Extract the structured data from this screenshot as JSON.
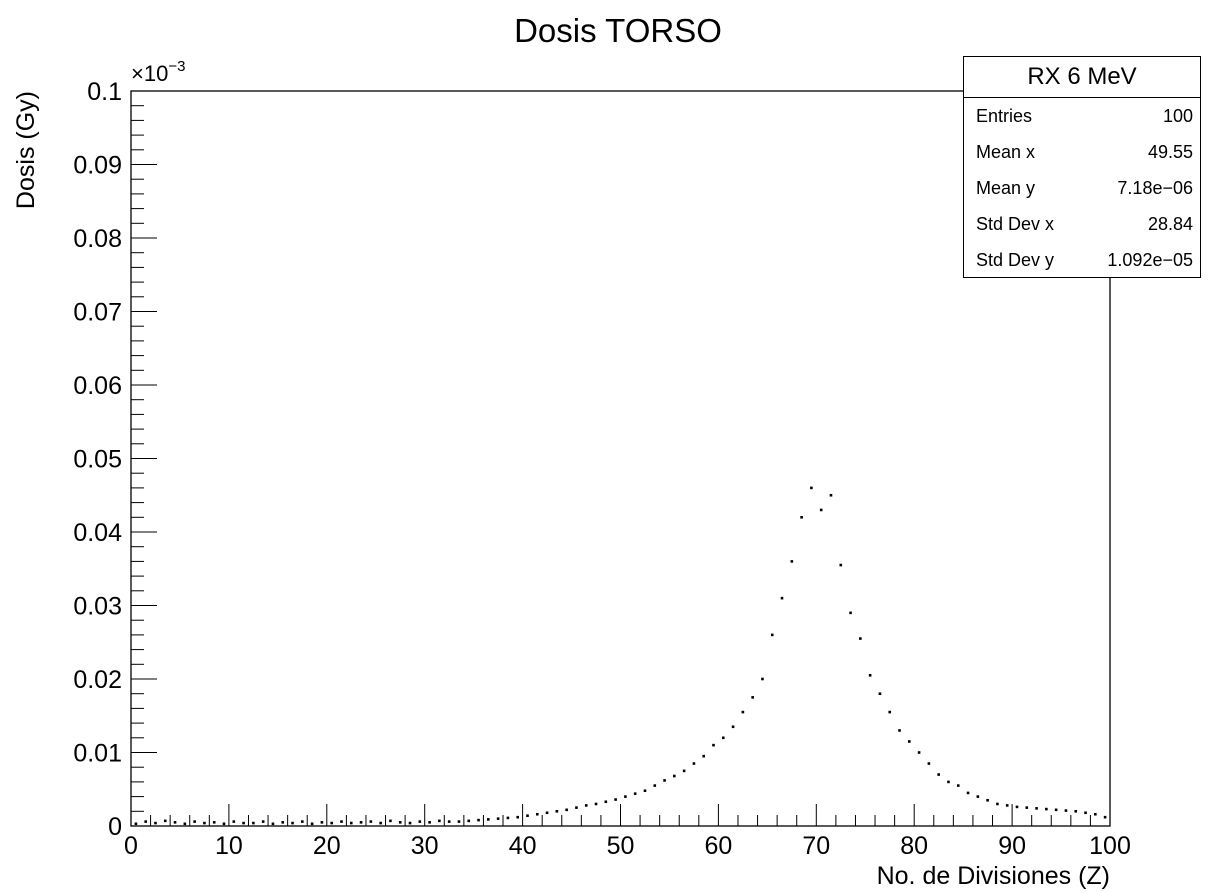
{
  "chart_data": {
    "type": "scatter",
    "title": "Dosis TORSO",
    "xlabel": "No. de Divisiones (Z)",
    "ylabel": "Dosis (Gy)",
    "y_exponent_label": "×10",
    "y_exponent_power": "−3",
    "xlim": [
      0,
      100
    ],
    "ylim": [
      0,
      0.1
    ],
    "x_ticks": [
      "0",
      "10",
      "20",
      "30",
      "40",
      "50",
      "60",
      "70",
      "80",
      "90",
      "100"
    ],
    "y_ticks": [
      "0",
      "0.01",
      "0.02",
      "0.03",
      "0.04",
      "0.05",
      "0.06",
      "0.07",
      "0.08",
      "0.09",
      "0.1"
    ],
    "y_values_scale": "×10^-3 Gy",
    "x": [
      0.5,
      1.5,
      2.5,
      3.5,
      4.5,
      5.5,
      6.5,
      7.5,
      8.5,
      9.5,
      10.5,
      11.5,
      12.5,
      13.5,
      14.5,
      15.5,
      16.5,
      17.5,
      18.5,
      19.5,
      20.5,
      21.5,
      22.5,
      23.5,
      24.5,
      25.5,
      26.5,
      27.5,
      28.5,
      29.5,
      30.5,
      31.5,
      32.5,
      33.5,
      34.5,
      35.5,
      36.5,
      37.5,
      38.5,
      39.5,
      40.5,
      41.5,
      42.5,
      43.5,
      44.5,
      45.5,
      46.5,
      47.5,
      48.5,
      49.5,
      50.5,
      51.5,
      52.5,
      53.5,
      54.5,
      55.5,
      56.5,
      57.5,
      58.5,
      59.5,
      60.5,
      61.5,
      62.5,
      63.5,
      64.5,
      65.5,
      66.5,
      67.5,
      68.5,
      69.5,
      70.5,
      71.5,
      72.5,
      73.5,
      74.5,
      75.5,
      76.5,
      77.5,
      78.5,
      79.5,
      80.5,
      81.5,
      82.5,
      83.5,
      84.5,
      85.5,
      86.5,
      87.5,
      88.5,
      89.5,
      90.5,
      91.5,
      92.5,
      93.5,
      94.5,
      95.5,
      96.5,
      97.5,
      98.5,
      99.5
    ],
    "y": [
      0.0003,
      0.0006,
      0.0004,
      0.0007,
      0.0005,
      0.0003,
      0.0006,
      0.0004,
      0.0005,
      0.0003,
      0.0006,
      0.0004,
      0.0004,
      0.0006,
      0.0003,
      0.0005,
      0.0004,
      0.0006,
      0.0003,
      0.0005,
      0.0004,
      0.0006,
      0.0004,
      0.0005,
      0.0006,
      0.0004,
      0.0007,
      0.0005,
      0.0004,
      0.0006,
      0.0005,
      0.0007,
      0.0006,
      0.0006,
      0.0007,
      0.0008,
      0.0009,
      0.001,
      0.0011,
      0.0012,
      0.0014,
      0.0016,
      0.0018,
      0.002,
      0.0022,
      0.0025,
      0.0028,
      0.003,
      0.0033,
      0.0036,
      0.004,
      0.0044,
      0.0048,
      0.0055,
      0.0062,
      0.0068,
      0.0075,
      0.0085,
      0.0095,
      0.011,
      0.012,
      0.0135,
      0.0155,
      0.0175,
      0.02,
      0.026,
      0.031,
      0.036,
      0.042,
      0.046,
      0.043,
      0.045,
      0.0355,
      0.029,
      0.0255,
      0.0205,
      0.018,
      0.0155,
      0.013,
      0.0115,
      0.01,
      0.0085,
      0.007,
      0.006,
      0.0055,
      0.0045,
      0.004,
      0.0035,
      0.003,
      0.0028,
      0.0026,
      0.0025,
      0.0024,
      0.0023,
      0.0022,
      0.0021,
      0.002,
      0.0018,
      0.0016,
      0.0012
    ]
  },
  "stats_box": {
    "title": "RX 6 MeV",
    "rows": [
      {
        "label": "Entries",
        "value": "100"
      },
      {
        "label": "Mean x",
        "value": "49.55"
      },
      {
        "label": "Mean y",
        "value": "7.18e−06"
      },
      {
        "label": "Std Dev x",
        "value": "28.84"
      },
      {
        "label": "Std Dev y",
        "value": "1.092e−05"
      }
    ]
  }
}
